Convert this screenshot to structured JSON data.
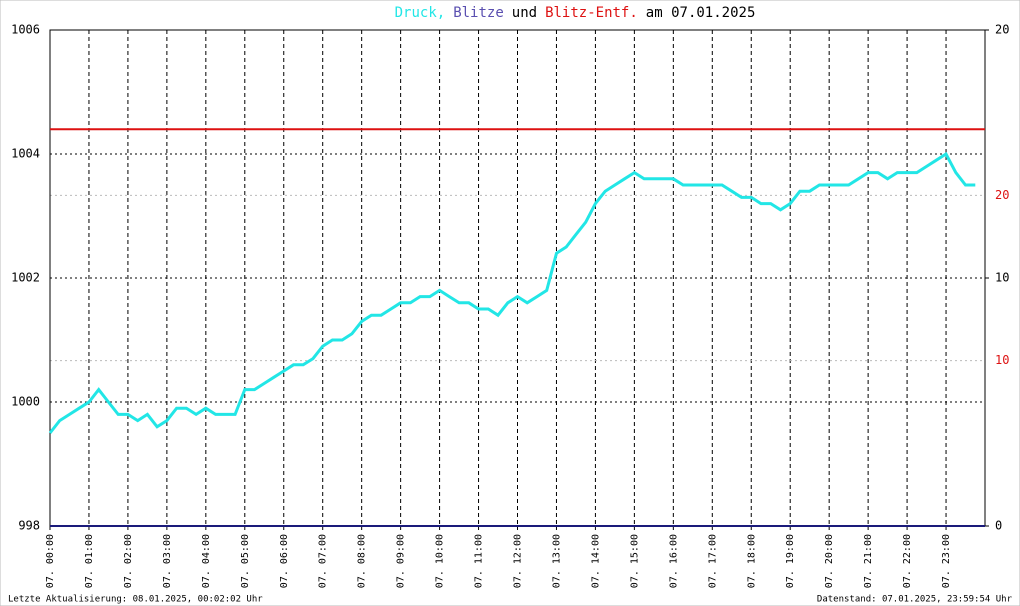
{
  "chart_data": {
    "type": "line",
    "title_parts": [
      {
        "text": "Druck,",
        "color": "#22e6e6"
      },
      {
        "text": "Blitze",
        "color": "#5a4fb0"
      },
      {
        "text": "und",
        "color": "#000000"
      },
      {
        "text": "Blitz-Entf.",
        "color": "#dd1111"
      },
      {
        "text": "am 07.01.2025",
        "color": "#000000"
      }
    ],
    "xlim": [
      0,
      24
    ],
    "xticks": [
      {
        "value": 0,
        "label": "07. 00:00"
      },
      {
        "value": 1,
        "label": "07. 01:00"
      },
      {
        "value": 2,
        "label": "07. 02:00"
      },
      {
        "value": 3,
        "label": "07. 03:00"
      },
      {
        "value": 4,
        "label": "07. 04:00"
      },
      {
        "value": 5,
        "label": "07. 05:00"
      },
      {
        "value": 6,
        "label": "07. 06:00"
      },
      {
        "value": 7,
        "label": "07. 07:00"
      },
      {
        "value": 8,
        "label": "07. 08:00"
      },
      {
        "value": 9,
        "label": "07. 09:00"
      },
      {
        "value": 10,
        "label": "07. 10:00"
      },
      {
        "value": 11,
        "label": "07. 11:00"
      },
      {
        "value": 12,
        "label": "07. 12:00"
      },
      {
        "value": 13,
        "label": "07. 13:00"
      },
      {
        "value": 14,
        "label": "07. 14:00"
      },
      {
        "value": 15,
        "label": "07. 15:00"
      },
      {
        "value": 16,
        "label": "07. 16:00"
      },
      {
        "value": 17,
        "label": "07. 17:00"
      },
      {
        "value": 18,
        "label": "07. 18:00"
      },
      {
        "value": 19,
        "label": "07. 19:00"
      },
      {
        "value": 20,
        "label": "07. 20:00"
      },
      {
        "value": 21,
        "label": "07. 21:00"
      },
      {
        "value": 22,
        "label": "07. 22:00"
      },
      {
        "value": 23,
        "label": "07. 23:00"
      }
    ],
    "ylim": [
      998,
      1006
    ],
    "yticks": [
      998,
      1000,
      1002,
      1004,
      1006
    ],
    "y2lim": [
      0,
      20
    ],
    "y2ticks": [
      0,
      10,
      20
    ],
    "y3lim": [
      0,
      30
    ],
    "y3ticks": [
      10,
      20
    ],
    "y3color": "#dd1111",
    "series": [
      {
        "name": "Druck",
        "color": "#22e6e6",
        "axis": "y",
        "x": [
          0,
          0.25,
          0.5,
          0.75,
          1,
          1.25,
          1.5,
          1.75,
          2,
          2.25,
          2.5,
          2.75,
          3,
          3.25,
          3.5,
          3.75,
          4,
          4.25,
          4.5,
          4.75,
          5,
          5.25,
          5.5,
          5.75,
          6,
          6.25,
          6.5,
          6.75,
          7,
          7.25,
          7.5,
          7.75,
          8,
          8.25,
          8.5,
          8.75,
          9,
          9.25,
          9.5,
          9.75,
          10,
          10.25,
          10.5,
          10.75,
          11,
          11.25,
          11.5,
          11.75,
          12,
          12.25,
          12.5,
          12.75,
          13,
          13.25,
          13.5,
          13.75,
          14,
          14.25,
          14.5,
          14.75,
          15,
          15.25,
          15.5,
          15.75,
          16,
          16.25,
          16.5,
          16.75,
          17,
          17.25,
          17.5,
          17.75,
          18,
          18.25,
          18.5,
          18.75,
          19,
          19.25,
          19.5,
          19.75,
          20,
          20.25,
          20.5,
          20.75,
          21,
          21.25,
          21.5,
          21.75,
          22,
          22.25,
          22.5,
          22.75,
          23,
          23.25,
          23.5,
          23.75
        ],
        "values": [
          999.5,
          999.7,
          999.8,
          999.9,
          1000.0,
          1000.2,
          1000.0,
          999.8,
          999.8,
          999.7,
          999.8,
          999.6,
          999.7,
          999.9,
          999.9,
          999.8,
          999.9,
          999.8,
          999.8,
          999.8,
          1000.2,
          1000.2,
          1000.3,
          1000.4,
          1000.5,
          1000.6,
          1000.6,
          1000.7,
          1000.9,
          1001.0,
          1001.0,
          1001.1,
          1001.3,
          1001.4,
          1001.4,
          1001.5,
          1001.6,
          1001.6,
          1001.7,
          1001.7,
          1001.8,
          1001.7,
          1001.6,
          1001.6,
          1001.5,
          1001.5,
          1001.4,
          1001.6,
          1001.7,
          1001.6,
          1001.7,
          1001.8,
          1002.4,
          1002.5,
          1002.7,
          1002.9,
          1003.2,
          1003.4,
          1003.5,
          1003.6,
          1003.7,
          1003.6,
          1003.6,
          1003.6,
          1003.6,
          1003.5,
          1003.5,
          1003.5,
          1003.5,
          1003.5,
          1003.4,
          1003.3,
          1003.3,
          1003.2,
          1003.2,
          1003.1,
          1003.2,
          1003.4,
          1003.4,
          1003.5,
          1003.5,
          1003.5,
          1003.5,
          1003.6,
          1003.7,
          1003.7,
          1003.6,
          1003.7,
          1003.7,
          1003.7,
          1003.8,
          1003.9,
          1004.0,
          1003.7,
          1003.5,
          1003.5
        ]
      },
      {
        "name": "Blitze",
        "color": "#1a1a7a",
        "axis": "y2",
        "x": [
          0,
          24
        ],
        "values": [
          0,
          0
        ]
      },
      {
        "name": "Blitz-Entf.",
        "color": "#dd1111",
        "axis": "y3",
        "x": [
          0,
          24
        ],
        "values": [
          24,
          24
        ]
      }
    ],
    "footer_left": "Letzte Aktualisierung: 08.01.2025, 00:02:02 Uhr",
    "footer_right": "Datenstand: 07.01.2025, 23:59:54 Uhr"
  }
}
